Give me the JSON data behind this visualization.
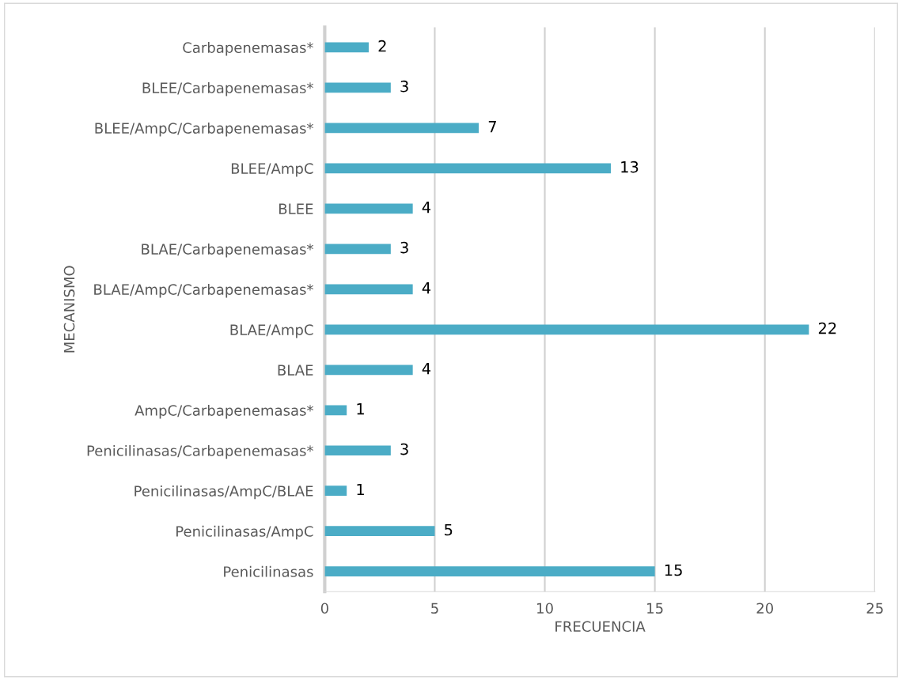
{
  "chart_data": {
    "type": "bar",
    "orientation": "horizontal",
    "xlabel": "FRECUENCIA",
    "ylabel": "MECANISMO",
    "categories": [
      "Carbapenemasas*",
      "BLEE/Carbapenemasas*",
      "BLEE/AmpC/Carbapenemasas*",
      "BLEE/AmpC",
      "BLEE",
      "BLAE/Carbapenemasas*",
      "BLAE/AmpC/Carbapenemasas*",
      "BLAE/AmpC",
      "BLAE",
      "AmpC/Carbapenemasas*",
      "Penicilinasas/Carbapenemasas*",
      "Penicilinasas/AmpC/BLAE",
      "Penicilinasas/AmpC",
      "Penicilinasas"
    ],
    "values": [
      2,
      3,
      7,
      13,
      4,
      3,
      4,
      22,
      4,
      1,
      3,
      1,
      5,
      15
    ],
    "color": "#4bacc6",
    "data_labels": true,
    "xlim": [
      0,
      25
    ],
    "xticks": [
      0,
      5,
      10,
      15,
      20,
      25
    ],
    "grid": "x",
    "legend": false
  }
}
